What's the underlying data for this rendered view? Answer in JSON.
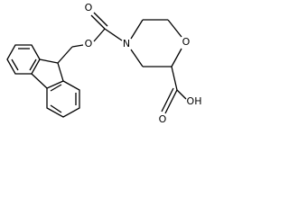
{
  "atoms": [
    "O",
    "O",
    "N",
    "O",
    "O",
    "OH"
  ]
}
